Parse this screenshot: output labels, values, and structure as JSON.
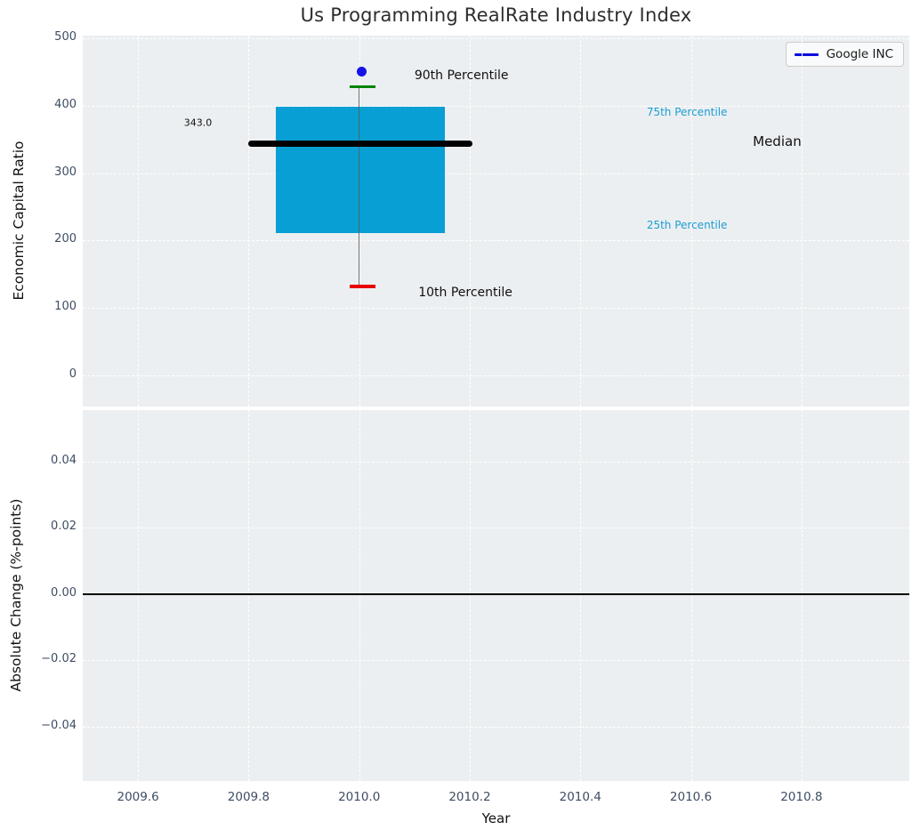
{
  "title": "Us Programming RealRate Industry Index",
  "legend": {
    "label": "Google INC",
    "line_color": "#0a0ae0"
  },
  "colors": {
    "plot_background": "#eceff1",
    "grid": "#ffffff",
    "box_fill": "#089fd4",
    "median_line": "#000000",
    "p90_cap": "#008400",
    "p10_cap": "#e60000",
    "whisker": "#5a5a5a",
    "company_point": "#1414e8",
    "percentile_label": "#1a9ed3",
    "tick_label": "#3e4d63",
    "zero_line": "#000000"
  },
  "chart_data": {
    "type": "boxplot",
    "title": "Us Programming RealRate Industry Index",
    "xlabel": "Year",
    "top_axis": {
      "ylabel": "Economic Capital Ratio",
      "ylim": [
        -46.5,
        504
      ],
      "yticks": [
        0,
        100,
        200,
        300,
        400,
        500
      ],
      "ytick_labels": [
        "0",
        "100",
        "200",
        "300",
        "400",
        "500"
      ],
      "xlim": [
        2009.5,
        2010.995
      ],
      "xticks": [
        2009.6,
        2009.8,
        2010.0,
        2010.2,
        2010.4,
        2010.6,
        2010.8
      ],
      "grid": true,
      "box": {
        "x_center": 2010.0,
        "x_range": [
          2009.85,
          2010.155
        ],
        "p10": 132,
        "p25": 211,
        "median": 343.0,
        "p75": 398,
        "p90": 428,
        "median_line_x": [
          2009.8,
          2010.205
        ],
        "cap_x": [
          2009.982,
          2010.03
        ]
      },
      "company_point": {
        "name": "Google INC",
        "x": 2010.005,
        "y": 450
      },
      "annotations": [
        {
          "id": "median-value-label",
          "text": "343.0",
          "x": 2009.683,
          "y": 374,
          "size": 11,
          "color": "#111111"
        },
        {
          "id": "p90-label",
          "text": "90th Percentile",
          "x": 2010.1,
          "y": 445,
          "size": 14,
          "color": "#111111"
        },
        {
          "id": "p10-label",
          "text": "10th Percentile",
          "x": 2010.107,
          "y": 122,
          "size": 14,
          "color": "#111111"
        },
        {
          "id": "p75-label",
          "text": "75th Percentile",
          "x": 2010.52,
          "y": 390,
          "size": 12,
          "color": "#1a9ed3"
        },
        {
          "id": "p25-label",
          "text": "25th Percentile",
          "x": 2010.52,
          "y": 223,
          "size": 12,
          "color": "#1a9ed3"
        },
        {
          "id": "median-label",
          "text": "Median",
          "x": 2010.712,
          "y": 347,
          "size": 15,
          "color": "#111111"
        }
      ]
    },
    "bottom_axis": {
      "ylabel": "Absolute Change (%-points)",
      "ylim": [
        -0.0565,
        0.0555
      ],
      "yticks": [
        0.04,
        0.02,
        0.0,
        -0.02,
        -0.04
      ],
      "ytick_labels": [
        "0.04",
        "0.02",
        "0.00",
        "−0.02",
        "−0.04"
      ],
      "xlim": [
        2009.5,
        2010.995
      ],
      "xticks": [
        2009.6,
        2009.8,
        2010.0,
        2010.2,
        2010.4,
        2010.6,
        2010.8
      ],
      "xtick_labels": [
        "2009.6",
        "2009.8",
        "2010.0",
        "2010.2",
        "2010.4",
        "2010.6",
        "2010.8"
      ],
      "grid": true,
      "zero_line": 0.0
    },
    "legend": {
      "entries": [
        "Google INC"
      ],
      "position": "upper right"
    }
  }
}
